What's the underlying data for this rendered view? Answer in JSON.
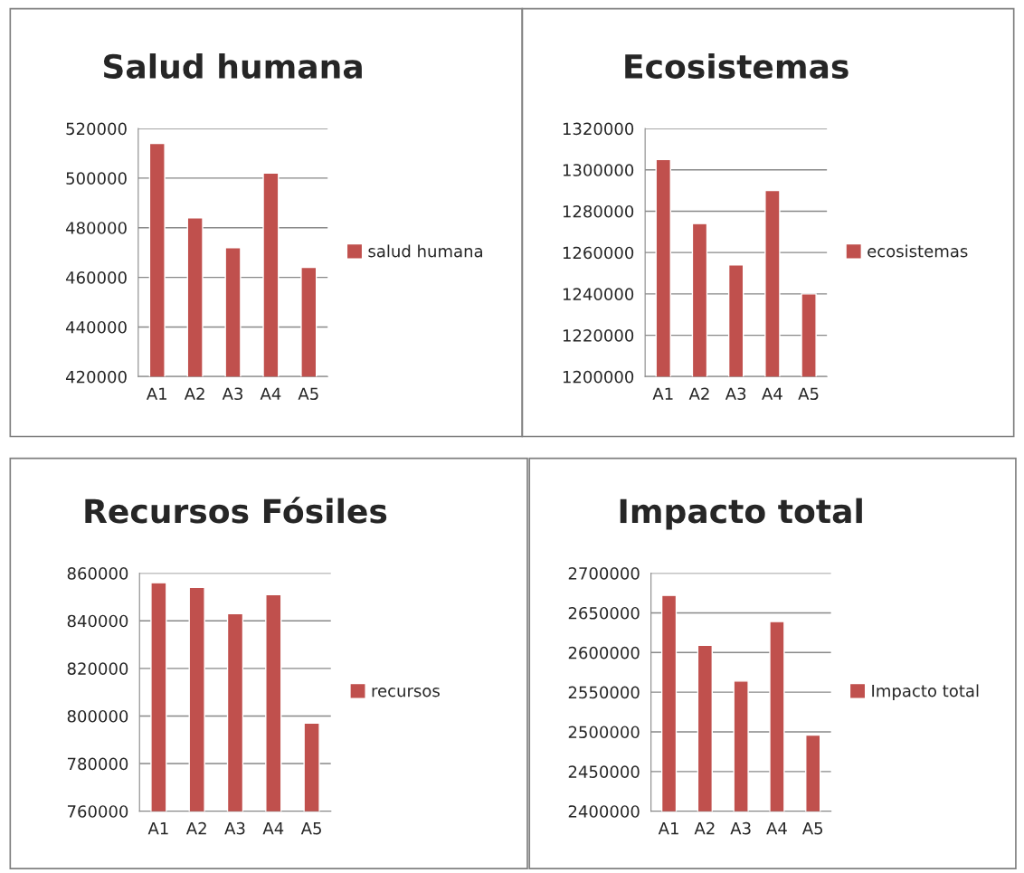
{
  "chart_data": [
    {
      "type": "bar",
      "title": "Salud humana",
      "categories": [
        "A1",
        "A2",
        "A3",
        "A4",
        "A5"
      ],
      "series": [
        {
          "name": "salud humana",
          "color": "#c0504d",
          "values": [
            514000,
            484000,
            472000,
            502000,
            464000
          ]
        }
      ],
      "ylim": [
        420000,
        520000
      ],
      "yticks": [
        420000,
        440000,
        460000,
        480000,
        500000,
        520000
      ],
      "grid": "y",
      "legend": "right"
    },
    {
      "type": "bar",
      "title": "Ecosistemas",
      "categories": [
        "A1",
        "A2",
        "A3",
        "A4",
        "A5"
      ],
      "series": [
        {
          "name": "ecosistemas",
          "color": "#c0504d",
          "values": [
            1305000,
            1274000,
            1254000,
            1290000,
            1240000
          ]
        }
      ],
      "ylim": [
        1200000,
        1320000
      ],
      "yticks": [
        1200000,
        1220000,
        1240000,
        1260000,
        1280000,
        1300000,
        1320000
      ],
      "grid": "y",
      "legend": "right"
    },
    {
      "type": "bar",
      "title": "Recursos Fósiles",
      "categories": [
        "A1",
        "A2",
        "A3",
        "A4",
        "A5"
      ],
      "series": [
        {
          "name": "recursos",
          "color": "#c0504d",
          "values": [
            856000,
            854000,
            843000,
            851000,
            797000
          ]
        }
      ],
      "ylim": [
        760000,
        860000
      ],
      "yticks": [
        760000,
        780000,
        800000,
        820000,
        840000,
        860000
      ],
      "grid": "y",
      "legend": "right"
    },
    {
      "type": "bar",
      "title": "Impacto total",
      "categories": [
        "A1",
        "A2",
        "A3",
        "A4",
        "A5"
      ],
      "series": [
        {
          "name": "Impacto total",
          "color": "#c0504d",
          "values": [
            2672000,
            2609000,
            2564000,
            2639000,
            2496000
          ]
        }
      ],
      "ylim": [
        2400000,
        2700000
      ],
      "yticks": [
        2400000,
        2450000,
        2500000,
        2550000,
        2600000,
        2650000,
        2700000
      ],
      "grid": "y",
      "legend": "right"
    }
  ]
}
